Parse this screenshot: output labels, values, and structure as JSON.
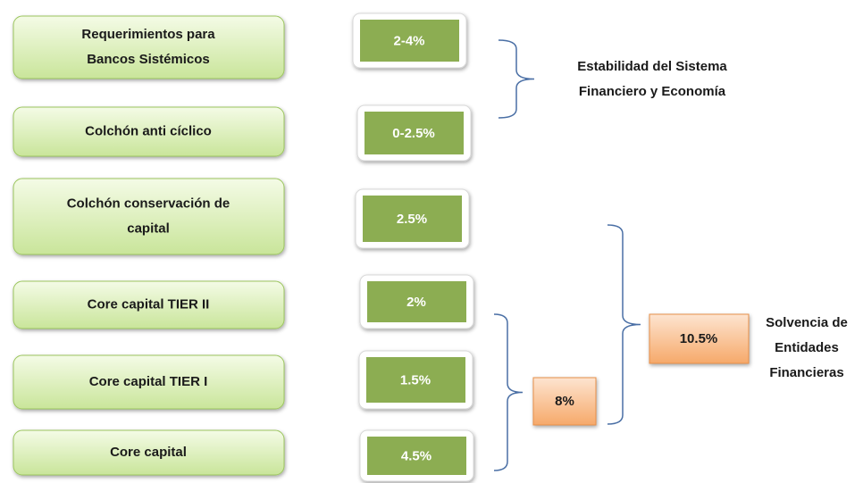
{
  "items": [
    {
      "label": [
        "Requerimientos  para",
        "Bancos Sistémicos"
      ],
      "value": "2-4%"
    },
    {
      "label": [
        "Colchón anti cíclico"
      ],
      "value": "0-2.5%"
    },
    {
      "label": [
        "Colchón conservación de",
        "capital"
      ],
      "value": "2.5%"
    },
    {
      "label": [
        "Core capital TIER II"
      ],
      "value": "2%"
    },
    {
      "label": [
        "Core capital TIER I"
      ],
      "value": "1.5%"
    },
    {
      "label": [
        "Core capital"
      ],
      "value": "4.5%"
    }
  ],
  "groups": [
    {
      "label": [
        "Estabilidad del Sistema",
        "Financiero y Economía"
      ]
    },
    {
      "value": "8%"
    },
    {
      "value": "10.5%",
      "label": [
        "Solvencia de",
        "Entidades",
        "Financieras"
      ]
    }
  ]
}
